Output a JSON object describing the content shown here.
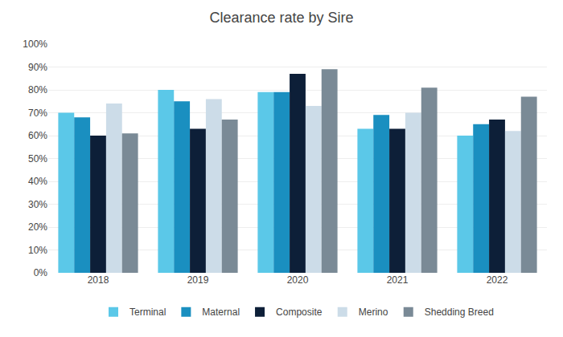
{
  "chart_data": {
    "type": "bar",
    "title": "Clearance rate by Sire",
    "categories": [
      "2018",
      "2019",
      "2020",
      "2021",
      "2022"
    ],
    "series": [
      {
        "name": "Terminal",
        "color": "#5BC8E8",
        "values": [
          0.7,
          0.8,
          0.79,
          0.63,
          0.6
        ]
      },
      {
        "name": "Maternal",
        "color": "#1A8FC0",
        "values": [
          0.68,
          0.75,
          0.79,
          0.69,
          0.65
        ]
      },
      {
        "name": "Composite",
        "color": "#0D1F38",
        "values": [
          0.6,
          0.63,
          0.87,
          0.63,
          0.67
        ]
      },
      {
        "name": "Merino",
        "color": "#CCDCE8",
        "values": [
          0.74,
          0.76,
          0.73,
          0.7,
          0.62
        ]
      },
      {
        "name": "Shedding Breed",
        "color": "#7A8A96",
        "values": [
          0.61,
          0.67,
          0.89,
          0.81,
          0.77
        ]
      }
    ],
    "ylim": [
      0,
      1.0
    ],
    "yticks": [
      {
        "value": 0.0,
        "label": "0%"
      },
      {
        "value": 0.1,
        "label": "10%"
      },
      {
        "value": 0.2,
        "label": "20%"
      },
      {
        "value": 0.3,
        "label": "30%"
      },
      {
        "value": 0.4,
        "label": "40%"
      },
      {
        "value": 0.5,
        "label": "50%"
      },
      {
        "value": 0.6,
        "label": "60%"
      },
      {
        "value": 0.7,
        "label": "70%"
      },
      {
        "value": 0.8,
        "label": "80%"
      },
      {
        "value": 0.9,
        "label": "90%"
      },
      {
        "value": 1.0,
        "label": "100%"
      }
    ],
    "grid": true,
    "legend": "bottom"
  }
}
